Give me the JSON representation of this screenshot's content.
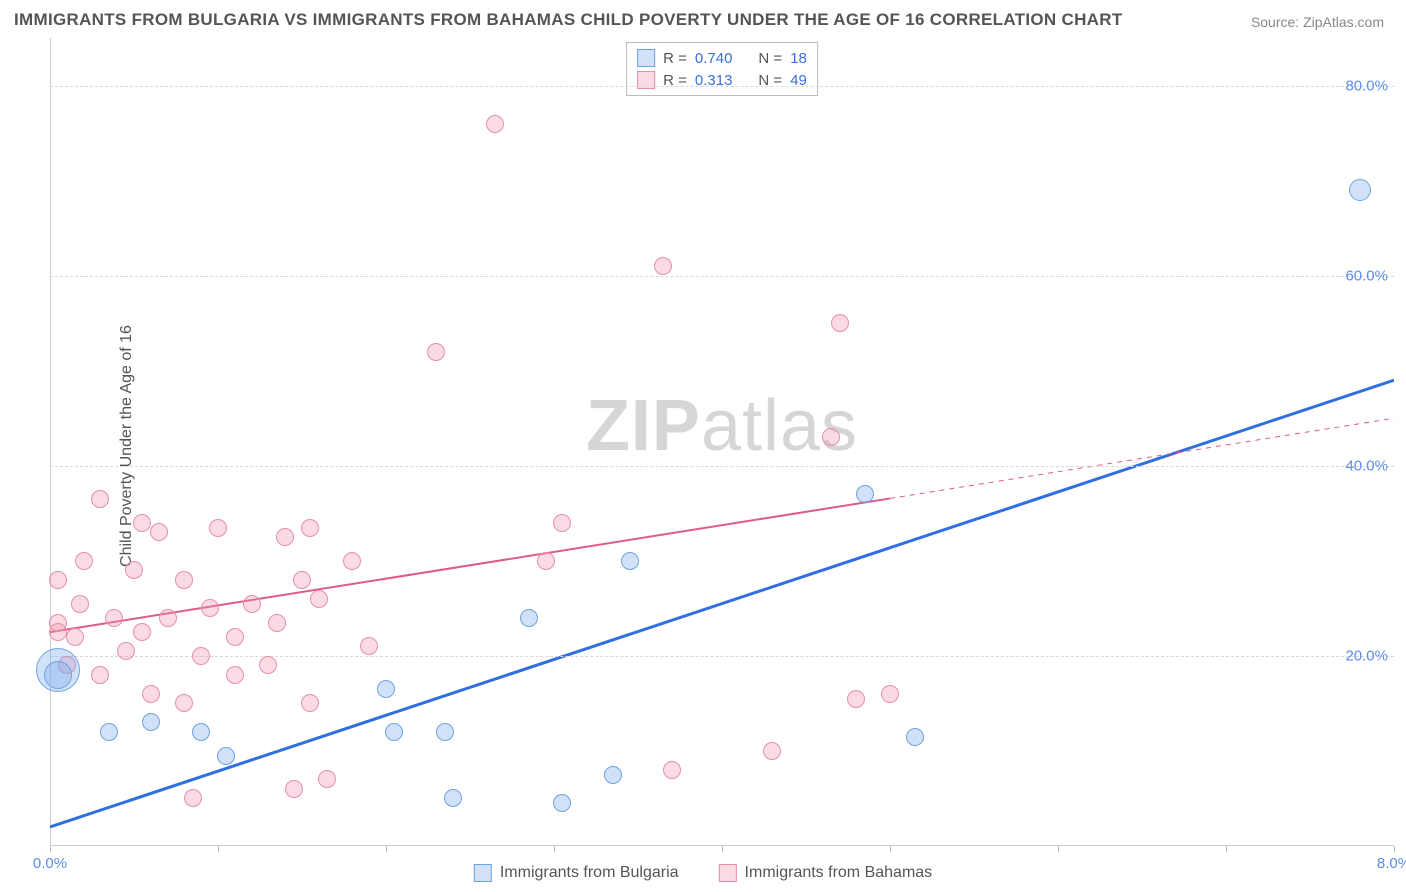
{
  "title": "IMMIGRANTS FROM BULGARIA VS IMMIGRANTS FROM BAHAMAS CHILD POVERTY UNDER THE AGE OF 16 CORRELATION CHART",
  "source_label": "Source:",
  "source_value": "ZipAtlas.com",
  "ylabel": "Child Poverty Under the Age of 16",
  "watermark_a": "ZIP",
  "watermark_b": "atlas",
  "chart": {
    "type": "scatter",
    "background_color": "#ffffff",
    "grid_color": "#d8d8d8",
    "axis_color": "#cccccc",
    "tick_label_color": "#5b8def",
    "xlim": [
      0.0,
      8.0
    ],
    "ylim": [
      0.0,
      85.0
    ],
    "y_gridlines": [
      20,
      40,
      60,
      80
    ],
    "x_ticks_minor": [
      0,
      1,
      2,
      3,
      4,
      5,
      6,
      7,
      8
    ],
    "x_tick_labels": [
      {
        "x": 0.0,
        "label": "0.0%"
      },
      {
        "x": 8.0,
        "label": "8.0%"
      }
    ],
    "y_tick_labels": [
      {
        "y": 20,
        "label": "20.0%"
      },
      {
        "y": 40,
        "label": "40.0%"
      },
      {
        "y": 60,
        "label": "60.0%"
      },
      {
        "y": 80,
        "label": "80.0%"
      }
    ],
    "series": [
      {
        "id": "bulgaria",
        "name": "Immigrants from Bulgaria",
        "color_fill": "rgba(120,170,235,0.35)",
        "color_stroke": "#6fa3e0",
        "r_value": "0.740",
        "n_value": "18",
        "marker_radius": 9,
        "trend": {
          "x1": 0.0,
          "y1": 2.0,
          "x2": 8.0,
          "y2": 49.0,
          "stroke": "#2f6fe0",
          "width": 3,
          "dash_after_x": null
        },
        "points": [
          {
            "x": 0.05,
            "y": 18.5,
            "r": 22
          },
          {
            "x": 0.05,
            "y": 18.0,
            "r": 14
          },
          {
            "x": 0.35,
            "y": 12.0,
            "r": 9
          },
          {
            "x": 0.6,
            "y": 13.0,
            "r": 9
          },
          {
            "x": 0.9,
            "y": 12.0,
            "r": 9
          },
          {
            "x": 1.05,
            "y": 9.5,
            "r": 9
          },
          {
            "x": 2.05,
            "y": 12.0,
            "r": 9
          },
          {
            "x": 2.0,
            "y": 16.5,
            "r": 9
          },
          {
            "x": 2.35,
            "y": 12.0,
            "r": 9
          },
          {
            "x": 2.4,
            "y": 5.0,
            "r": 9
          },
          {
            "x": 2.85,
            "y": 24.0,
            "r": 9
          },
          {
            "x": 3.05,
            "y": 4.5,
            "r": 9
          },
          {
            "x": 3.35,
            "y": 7.5,
            "r": 9
          },
          {
            "x": 3.45,
            "y": 30.0,
            "r": 9
          },
          {
            "x": 4.85,
            "y": 37.0,
            "r": 9
          },
          {
            "x": 5.15,
            "y": 11.5,
            "r": 9
          },
          {
            "x": 7.8,
            "y": 69.0,
            "r": 11
          }
        ]
      },
      {
        "id": "bahamas",
        "name": "Immigrants from Bahamas",
        "color_fill": "rgba(242,150,175,0.35)",
        "color_stroke": "#e690a8",
        "r_value": "0.313",
        "n_value": "49",
        "marker_radius": 9,
        "trend": {
          "x1": 0.0,
          "y1": 22.5,
          "x2": 8.0,
          "y2": 45.0,
          "stroke": "#e05a8a",
          "width": 2,
          "dash_after_x": 5.0
        },
        "points": [
          {
            "x": 0.05,
            "y": 22.5
          },
          {
            "x": 0.05,
            "y": 23.5
          },
          {
            "x": 0.05,
            "y": 28.0
          },
          {
            "x": 0.1,
            "y": 19.0
          },
          {
            "x": 0.15,
            "y": 22.0
          },
          {
            "x": 0.18,
            "y": 25.5
          },
          {
            "x": 0.2,
            "y": 30.0
          },
          {
            "x": 0.3,
            "y": 36.5
          },
          {
            "x": 0.3,
            "y": 18.0
          },
          {
            "x": 0.38,
            "y": 24.0
          },
          {
            "x": 0.45,
            "y": 20.5
          },
          {
            "x": 0.5,
            "y": 29.0
          },
          {
            "x": 0.55,
            "y": 34.0
          },
          {
            "x": 0.55,
            "y": 22.5
          },
          {
            "x": 0.6,
            "y": 16.0
          },
          {
            "x": 0.65,
            "y": 33.0
          },
          {
            "x": 0.7,
            "y": 24.0
          },
          {
            "x": 0.8,
            "y": 28.0
          },
          {
            "x": 0.8,
            "y": 15.0
          },
          {
            "x": 0.85,
            "y": 5.0
          },
          {
            "x": 0.9,
            "y": 20.0
          },
          {
            "x": 0.95,
            "y": 25.0
          },
          {
            "x": 1.0,
            "y": 33.5
          },
          {
            "x": 1.1,
            "y": 22.0
          },
          {
            "x": 1.1,
            "y": 18.0
          },
          {
            "x": 1.2,
            "y": 25.5
          },
          {
            "x": 1.3,
            "y": 19.0
          },
          {
            "x": 1.35,
            "y": 23.5
          },
          {
            "x": 1.4,
            "y": 32.5
          },
          {
            "x": 1.45,
            "y": 6.0
          },
          {
            "x": 1.5,
            "y": 28.0
          },
          {
            "x": 1.55,
            "y": 33.5
          },
          {
            "x": 1.55,
            "y": 15.0
          },
          {
            "x": 1.6,
            "y": 26.0
          },
          {
            "x": 1.65,
            "y": 7.0
          },
          {
            "x": 1.8,
            "y": 30.0
          },
          {
            "x": 1.9,
            "y": 21.0
          },
          {
            "x": 2.3,
            "y": 52.0
          },
          {
            "x": 2.65,
            "y": 76.0
          },
          {
            "x": 2.95,
            "y": 30.0
          },
          {
            "x": 3.05,
            "y": 34.0
          },
          {
            "x": 3.65,
            "y": 61.0
          },
          {
            "x": 3.7,
            "y": 8.0
          },
          {
            "x": 4.3,
            "y": 10.0
          },
          {
            "x": 4.65,
            "y": 43.0
          },
          {
            "x": 4.7,
            "y": 55.0
          },
          {
            "x": 4.8,
            "y": 15.5
          },
          {
            "x": 5.0,
            "y": 16.0
          }
        ]
      }
    ]
  },
  "legend_top": {
    "r_label": "R =",
    "n_label": "N ="
  }
}
